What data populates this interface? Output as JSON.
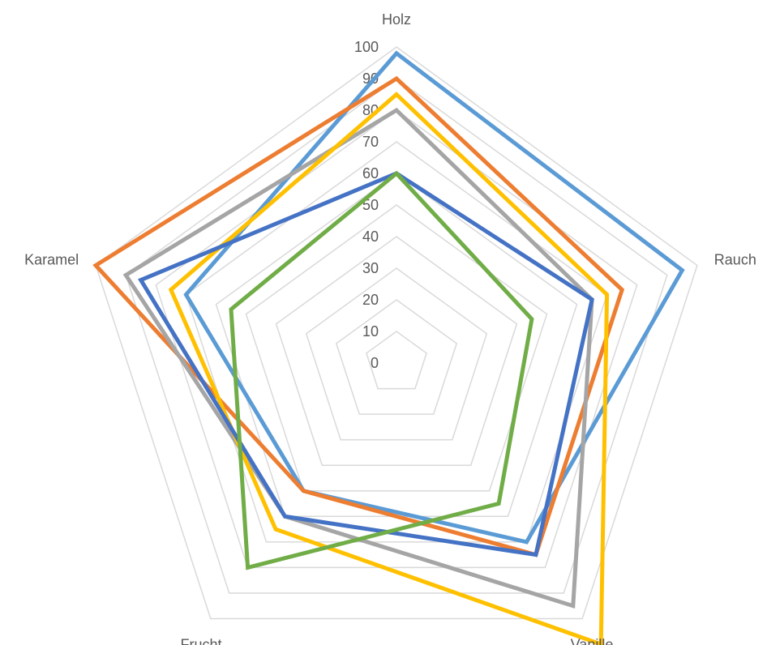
{
  "chart_data": {
    "type": "radar",
    "categories": [
      "Holz",
      "Rauch",
      "Vanille",
      "Frucht",
      "Karamel"
    ],
    "rmin": 0,
    "rmax": 100,
    "ticks": [
      0,
      10,
      20,
      30,
      40,
      50,
      60,
      70,
      80,
      90,
      100
    ],
    "grid": true,
    "series": [
      {
        "color": "#5b9bd5",
        "values": [
          98,
          95,
          70,
          50,
          70
        ]
      },
      {
        "color": "#ed7d31",
        "values": [
          90,
          75,
          75,
          50,
          100
        ]
      },
      {
        "color": "#a5a5a5",
        "values": [
          80,
          65,
          95,
          60,
          90
        ]
      },
      {
        "color": "#ffc000",
        "values": [
          85,
          70,
          110,
          65,
          75
        ]
      },
      {
        "color": "#4472c4",
        "values": [
          60,
          65,
          75,
          60,
          85
        ]
      },
      {
        "color": "#70ad47",
        "values": [
          60,
          45,
          55,
          80,
          55
        ]
      }
    ]
  }
}
